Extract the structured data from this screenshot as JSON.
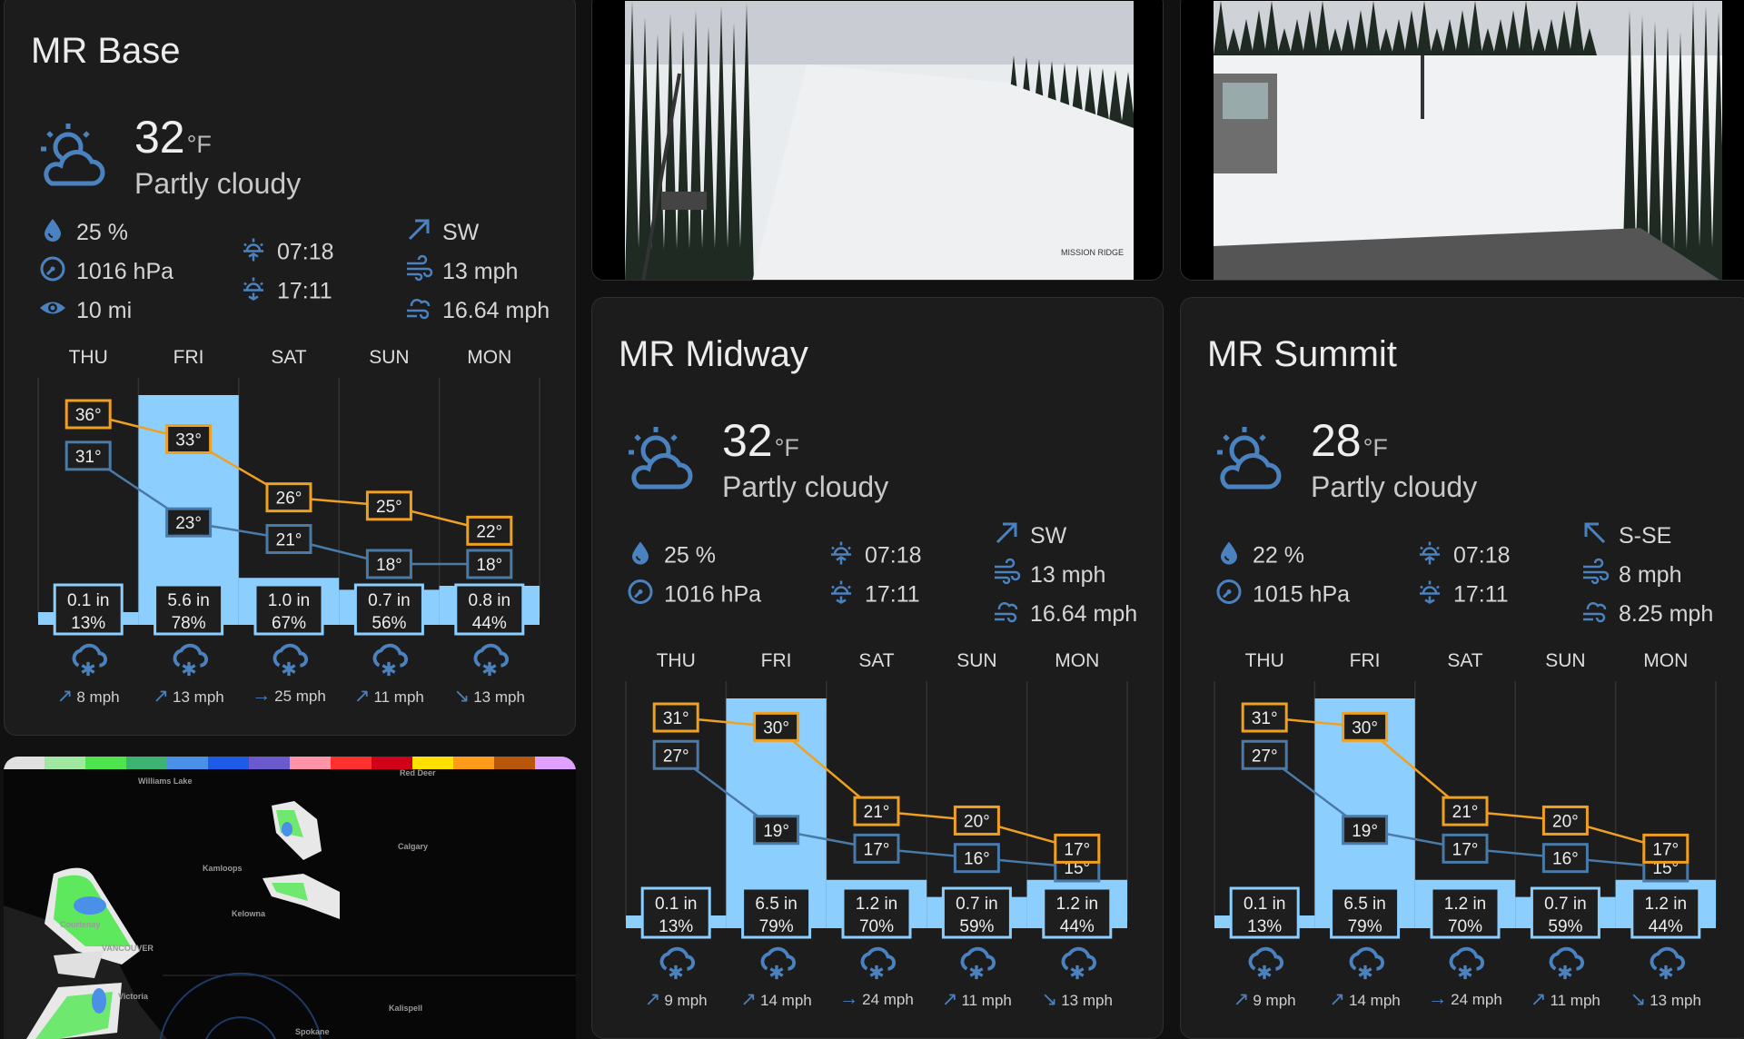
{
  "colors": {
    "high": "#f0a020",
    "low": "#4a7aa8",
    "precip": "#8ccfff",
    "icon": "#4a82c0",
    "card": "#1c1c1c"
  },
  "cards": [
    {
      "title": "MR Base",
      "temp": "32",
      "unit": "°F",
      "condition": "Partly cloudy",
      "icon": "partly-cloudy",
      "left": [
        {
          "icon": "humidity-drop-icon",
          "text": "25 %"
        },
        {
          "icon": "pressure-gauge-icon",
          "text": "1016 hPa"
        },
        {
          "icon": "visibility-eye-icon",
          "text": "10 mi"
        }
      ],
      "mid": [
        {
          "icon": "sunrise-icon",
          "text": "07:18"
        },
        {
          "icon": "sunset-icon",
          "text": "17:11"
        }
      ],
      "right": [
        {
          "icon": "wind-direction-ne-icon",
          "text": "SW"
        },
        {
          "icon": "wind-icon",
          "text": "13 mph"
        },
        {
          "icon": "wind-gust-icon",
          "text": "16.64 mph"
        }
      ],
      "forecast": [
        {
          "day": "THU",
          "high": 36,
          "low": 31,
          "precip": 0.1,
          "precip_label": "0.1 in",
          "prob": "13%",
          "icon": "snow",
          "wind_arrow": "↗",
          "wind": "8 mph"
        },
        {
          "day": "FRI",
          "high": 33,
          "low": 23,
          "precip": 5.6,
          "precip_label": "5.6 in",
          "prob": "78%",
          "icon": "snow",
          "wind_arrow": "↗",
          "wind": "13 mph"
        },
        {
          "day": "SAT",
          "high": 26,
          "low": 21,
          "precip": 1.0,
          "precip_label": "1.0 in",
          "prob": "67%",
          "icon": "snow",
          "wind_arrow": "→",
          "wind": "25 mph"
        },
        {
          "day": "SUN",
          "high": 25,
          "low": 18,
          "precip": 0.7,
          "precip_label": "0.7 in",
          "prob": "56%",
          "icon": "snow",
          "wind_arrow": "↗",
          "wind": "11 mph"
        },
        {
          "day": "MON",
          "high": 22,
          "low": 18,
          "precip": 0.8,
          "precip_label": "0.8 in",
          "prob": "44%",
          "icon": "snow",
          "wind_arrow": "↘",
          "wind": "13 mph"
        }
      ]
    },
    {
      "title": "MR Midway",
      "temp": "32",
      "unit": "°F",
      "condition": "Partly cloudy",
      "icon": "partly-cloudy",
      "left": [
        {
          "icon": "humidity-drop-icon",
          "text": "25 %"
        },
        {
          "icon": "pressure-gauge-icon",
          "text": "1016 hPa"
        }
      ],
      "mid": [
        {
          "icon": "sunrise-icon",
          "text": "07:18"
        },
        {
          "icon": "sunset-icon",
          "text": "17:11"
        }
      ],
      "right": [
        {
          "icon": "wind-direction-ne-icon",
          "text": "SW"
        },
        {
          "icon": "wind-icon",
          "text": "13 mph"
        },
        {
          "icon": "wind-gust-icon",
          "text": "16.64 mph"
        }
      ],
      "forecast": [
        {
          "day": "THU",
          "high": 31,
          "low": 27,
          "precip": 0.1,
          "precip_label": "0.1 in",
          "prob": "13%",
          "icon": "snow",
          "wind_arrow": "↗",
          "wind": "9 mph"
        },
        {
          "day": "FRI",
          "high": 30,
          "low": 19,
          "precip": 6.5,
          "precip_label": "6.5 in",
          "prob": "79%",
          "icon": "snow",
          "wind_arrow": "↗",
          "wind": "14 mph"
        },
        {
          "day": "SAT",
          "high": 21,
          "low": 17,
          "precip": 1.2,
          "precip_label": "1.2 in",
          "prob": "70%",
          "icon": "snow",
          "wind_arrow": "→",
          "wind": "24 mph"
        },
        {
          "day": "SUN",
          "high": 20,
          "low": 16,
          "precip": 0.7,
          "precip_label": "0.7 in",
          "prob": "59%",
          "icon": "snow",
          "wind_arrow": "↗",
          "wind": "11 mph"
        },
        {
          "day": "MON",
          "high": 17,
          "low": 15,
          "precip": 1.2,
          "precip_label": "1.2 in",
          "prob": "44%",
          "icon": "snow",
          "wind_arrow": "↘",
          "wind": "13 mph"
        }
      ]
    },
    {
      "title": "MR Summit",
      "temp": "28",
      "unit": "°F",
      "condition": "Partly cloudy",
      "icon": "partly-cloudy",
      "left": [
        {
          "icon": "humidity-drop-icon",
          "text": "22 %"
        },
        {
          "icon": "pressure-gauge-icon",
          "text": "1015 hPa"
        }
      ],
      "mid": [
        {
          "icon": "sunrise-icon",
          "text": "07:18"
        },
        {
          "icon": "sunset-icon",
          "text": "17:11"
        }
      ],
      "right": [
        {
          "icon": "wind-direction-nw-icon",
          "text": "S-SE"
        },
        {
          "icon": "wind-icon",
          "text": "8 mph"
        },
        {
          "icon": "wind-gust-icon",
          "text": "8.25 mph"
        }
      ],
      "forecast": [
        {
          "day": "THU",
          "high": 31,
          "low": 27,
          "precip": 0.1,
          "precip_label": "0.1 in",
          "prob": "13%",
          "icon": "snow",
          "wind_arrow": "↗",
          "wind": "9 mph"
        },
        {
          "day": "FRI",
          "high": 30,
          "low": 19,
          "precip": 6.5,
          "precip_label": "6.5 in",
          "prob": "79%",
          "icon": "snow",
          "wind_arrow": "↗",
          "wind": "14 mph"
        },
        {
          "day": "SAT",
          "high": 21,
          "low": 17,
          "precip": 1.2,
          "precip_label": "1.2 in",
          "prob": "70%",
          "icon": "snow",
          "wind_arrow": "→",
          "wind": "24 mph"
        },
        {
          "day": "SUN",
          "high": 20,
          "low": 16,
          "precip": 0.7,
          "precip_label": "0.7 in",
          "prob": "59%",
          "icon": "snow",
          "wind_arrow": "↗",
          "wind": "11 mph"
        },
        {
          "day": "MON",
          "high": 17,
          "low": 15,
          "precip": 1.2,
          "precip_label": "1.2 in",
          "prob": "44%",
          "icon": "snow",
          "wind_arrow": "↘",
          "wind": "13 mph"
        }
      ]
    }
  ],
  "webcams": [
    {
      "logo": "MISSION RIDGE"
    },
    {}
  ],
  "radar": {
    "legend_colors": [
      "#e0e0e0",
      "#a0e8a0",
      "#4ee44e",
      "#3cb371",
      "#4a90e8",
      "#1e5ce8",
      "#6a5acd",
      "#ff94a8",
      "#ff3030",
      "#d00018",
      "#ffe000",
      "#ff9a1a",
      "#b8560c",
      "#e0a0ff"
    ],
    "cities": [
      "Williams Lake",
      "Red Deer",
      "Calgary",
      "Kamloops",
      "Kelowna",
      "Courtenay",
      "VANCOUVER",
      "Victoria",
      "Kalispell",
      "Spokane"
    ]
  }
}
